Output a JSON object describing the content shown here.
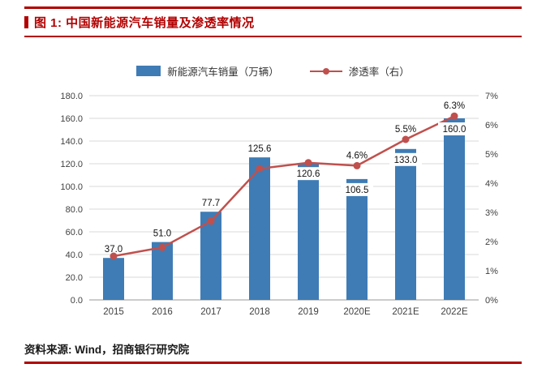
{
  "accent_color": "#b20000",
  "header": {
    "title": "图 1: 中国新能源汽车销量及渗透率情况"
  },
  "footer": {
    "source": "资料来源: Wind，招商银行研究院"
  },
  "chart_data": {
    "type": "combo (bar + line)",
    "title": "中国新能源汽车销量及渗透率情况",
    "categories": [
      "2015",
      "2016",
      "2017",
      "2018",
      "2019",
      "2020E",
      "2021E",
      "2022E"
    ],
    "series": [
      {
        "name": "新能源汽车销量（万辆）",
        "type": "bar",
        "axis": "left",
        "color": "#3f7cb5",
        "values": [
          37.0,
          51.0,
          77.7,
          125.6,
          120.6,
          106.5,
          133.0,
          160.0
        ],
        "labels": [
          "37.0",
          "51.0",
          "77.7",
          "125.6",
          "120.6",
          "106.5",
          "133.0",
          "160.0"
        ]
      },
      {
        "name": "渗透率（右）",
        "type": "line",
        "axis": "right",
        "color": "#c0504d",
        "values": [
          1.5,
          1.8,
          2.7,
          4.5,
          4.7,
          4.6,
          5.5,
          6.3
        ],
        "labels": [
          null,
          null,
          null,
          null,
          null,
          "4.6%",
          "5.5%",
          "6.3%"
        ]
      }
    ],
    "left_axis": {
      "min": 0,
      "max": 180,
      "step": 20,
      "ticks": [
        "0.0",
        "20.0",
        "40.0",
        "60.0",
        "80.0",
        "100.0",
        "120.0",
        "140.0",
        "160.0",
        "180.0"
      ]
    },
    "right_axis": {
      "min": 0,
      "max": 7,
      "step": 1,
      "ticks": [
        "0%",
        "1%",
        "2%",
        "3%",
        "4%",
        "5%",
        "6%",
        "7%"
      ]
    },
    "grid": true,
    "legend_position": "top",
    "bar_label_positions": [
      "above",
      "above",
      "above",
      "above",
      "below",
      "below",
      "below",
      "below"
    ]
  }
}
